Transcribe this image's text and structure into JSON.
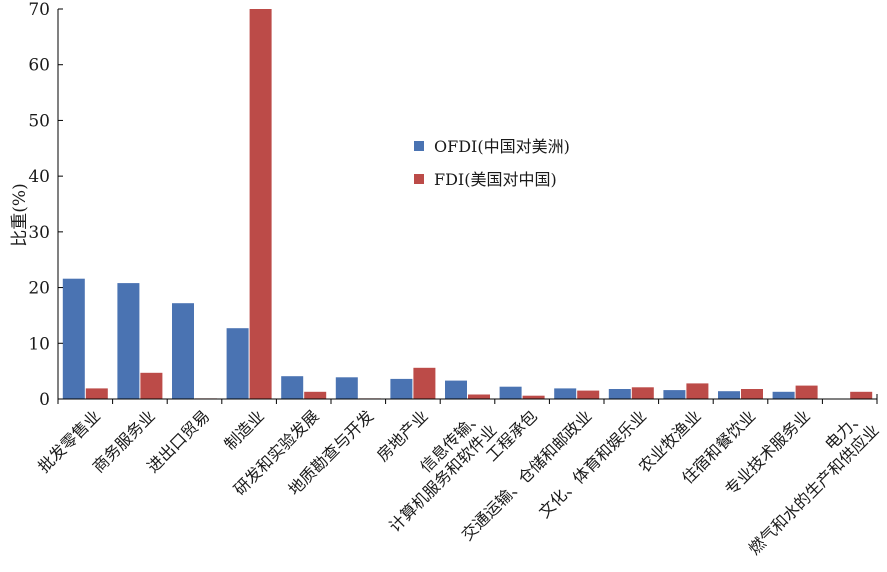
{
  "chart_data": {
    "type": "bar",
    "ylabel": "比重(%)",
    "ylim": [
      0,
      70
    ],
    "yticks": [
      0,
      10,
      20,
      30,
      40,
      50,
      60,
      70
    ],
    "grid": false,
    "legend_position": "center-right",
    "categories": [
      "批发零售业",
      "商务服务业",
      "进出口贸易",
      "制造业",
      "研发和实验发展",
      "地质勘查与开发",
      "房地产业",
      [
        "信息传输、",
        "计算机服务和软件业"
      ],
      "工程承包",
      "交通运输、仓储和邮政业",
      "文化、体育和娱乐业",
      "农业牧渔业",
      "住宿和餐饮业",
      "专业技术服务业",
      [
        "电力、",
        "燃气和水的生产和供应业"
      ]
    ],
    "series": [
      {
        "name": "OFDI(中国对美洲)",
        "color": "#4a73b2",
        "values": [
          21.6,
          20.8,
          17.2,
          12.7,
          4.1,
          3.9,
          3.6,
          3.3,
          2.2,
          1.9,
          1.8,
          1.6,
          1.4,
          1.3,
          0.0
        ]
      },
      {
        "name": "FDI(美国对中国)",
        "color": "#bc4b48",
        "values": [
          1.9,
          4.7,
          0.1,
          70.0,
          1.3,
          0.1,
          5.6,
          0.8,
          0.6,
          1.5,
          2.1,
          2.8,
          1.8,
          2.4,
          1.3
        ]
      }
    ]
  }
}
